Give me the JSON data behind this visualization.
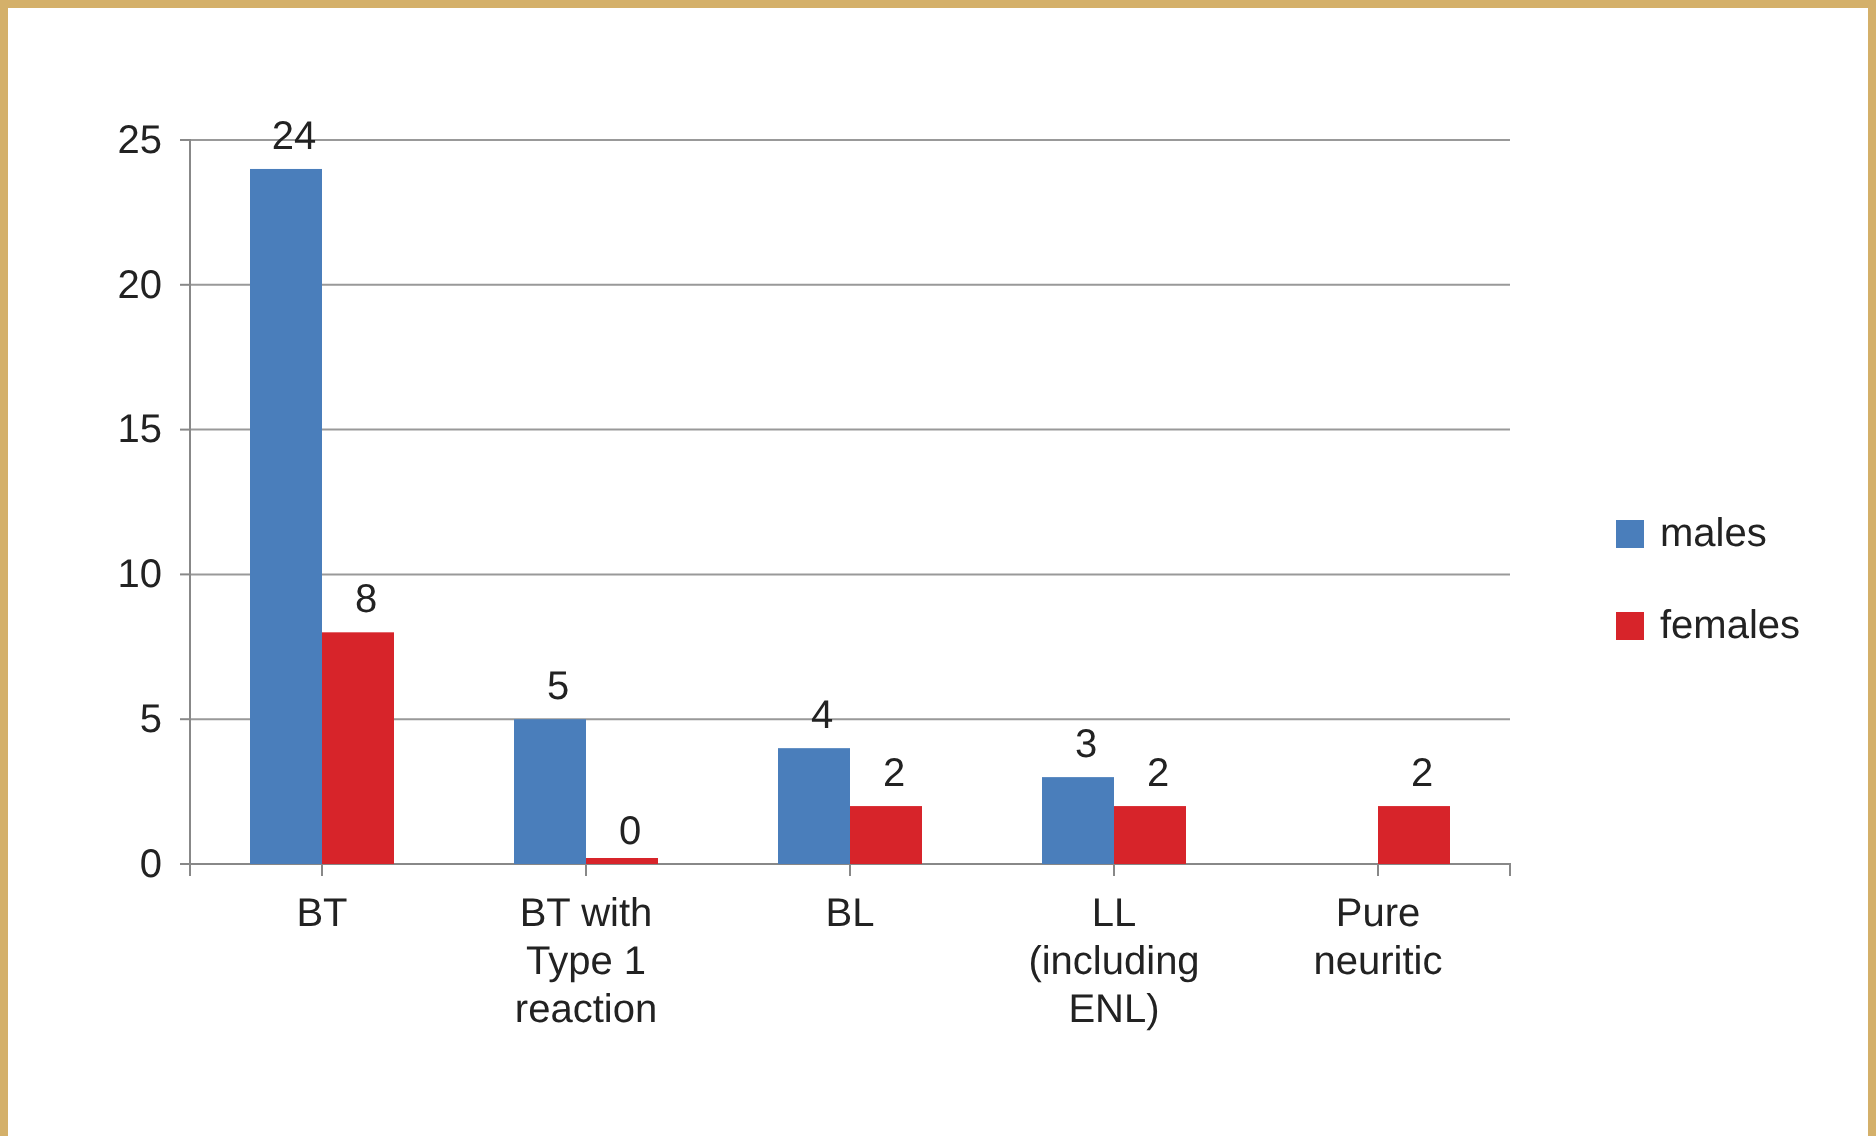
{
  "chart_data": {
    "type": "bar",
    "categories": [
      "BT",
      "BT with Type 1 reaction",
      "BL",
      "LL (including ENL)",
      "Pure neuritic"
    ],
    "series": [
      {
        "name": "males",
        "color": "#4a7ebb",
        "values": [
          24,
          5,
          4,
          3,
          null
        ]
      },
      {
        "name": "females",
        "color": "#d7242a",
        "values": [
          8,
          0,
          2,
          2,
          2
        ]
      }
    ],
    "ylim": [
      0,
      25
    ],
    "yticks": [
      0,
      5,
      10,
      15,
      20,
      25
    ],
    "grid": "y",
    "legend": "right",
    "data_labels": true
  }
}
